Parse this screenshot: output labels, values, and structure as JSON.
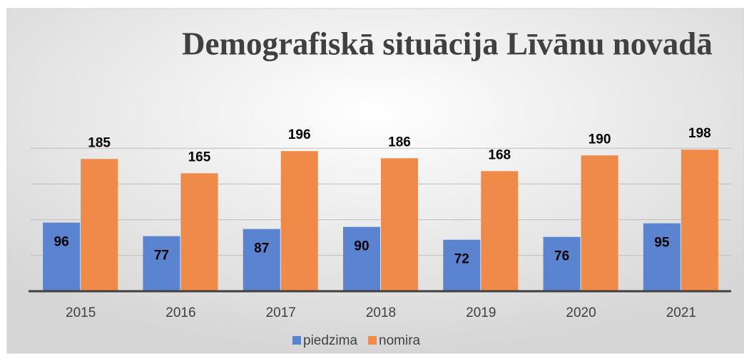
{
  "chart_data": {
    "type": "bar",
    "title": "Demografiskā situācija Līvānu novadā",
    "categories": [
      "2015",
      "2016",
      "2017",
      "2018",
      "2019",
      "2020",
      "2021"
    ],
    "series": [
      {
        "name": "piedzima",
        "color": "#5a84cf",
        "values": [
          96,
          77,
          87,
          90,
          72,
          76,
          95
        ]
      },
      {
        "name": "nomira",
        "color": "#ef8a48",
        "values": [
          185,
          165,
          196,
          186,
          168,
          190,
          198
        ]
      }
    ],
    "ylim": [
      0,
      250
    ],
    "yticks": [
      0,
      50,
      100,
      150,
      200
    ],
    "grid": true,
    "legend": "bottom"
  }
}
